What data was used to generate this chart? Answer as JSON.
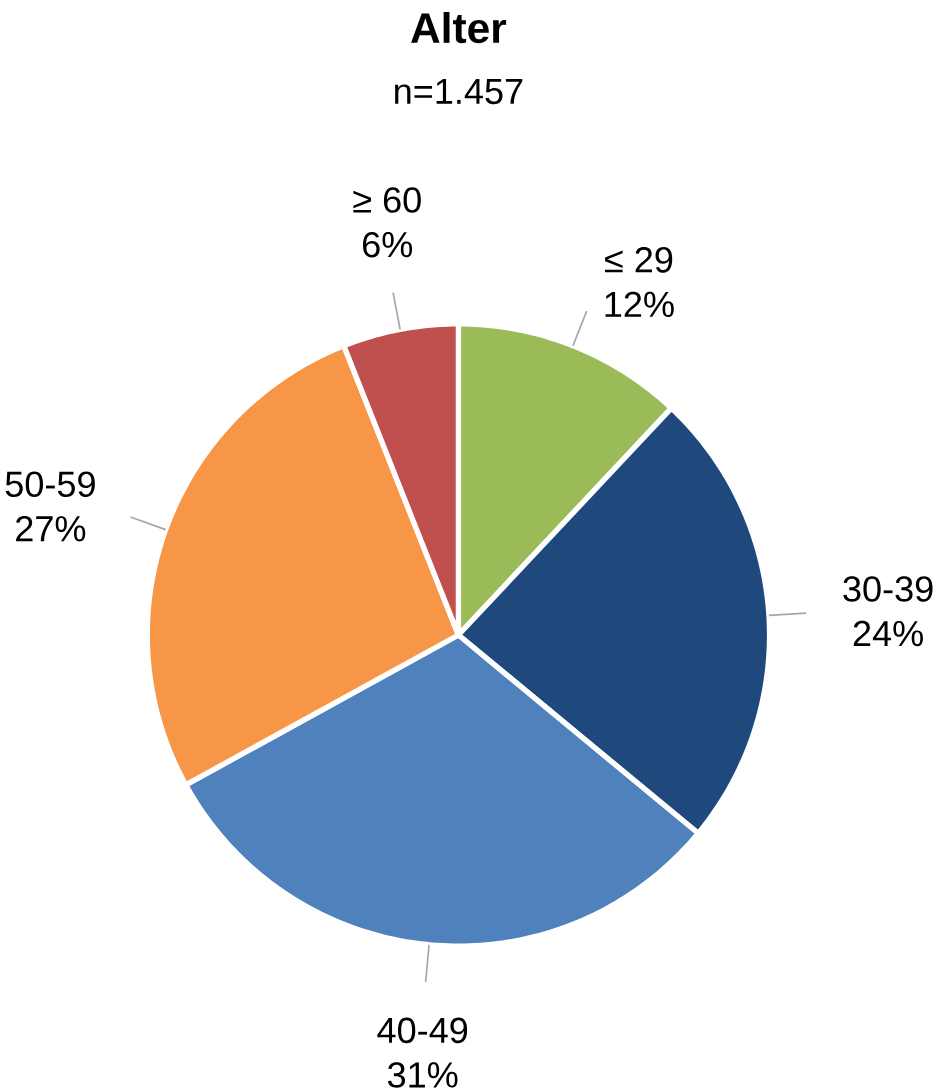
{
  "chart_data": {
    "type": "pie",
    "title": "Alter",
    "subtitle": "n=1.457",
    "categories": [
      "≤ 29",
      "30-39",
      "40-49",
      "50-59",
      "≥ 60"
    ],
    "values": [
      12,
      24,
      31,
      27,
      6
    ],
    "value_labels": [
      "12%",
      "24%",
      "31%",
      "27%",
      "6%"
    ],
    "colors": [
      "#9bbb59",
      "#1f497d",
      "#4f81bd",
      "#f79646",
      "#c0504d"
    ]
  }
}
